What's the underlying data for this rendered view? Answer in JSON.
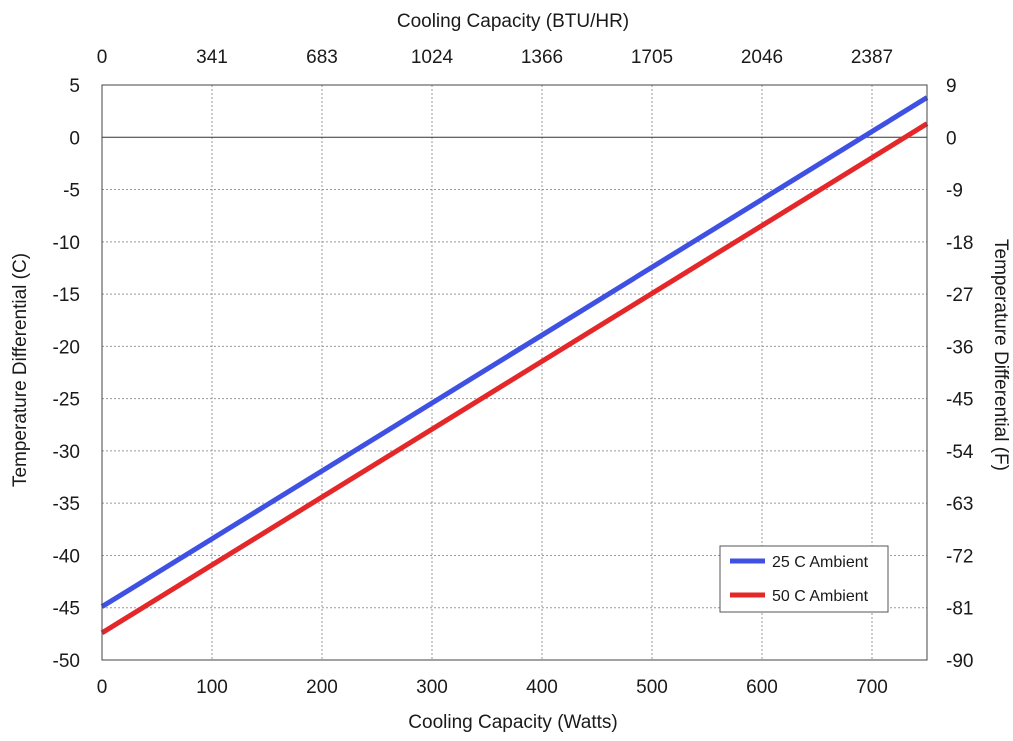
{
  "chart_data": {
    "type": "line",
    "title": "",
    "xlabel": "Cooling Capacity (Watts)",
    "ylabel": "Temperature Differential (C)",
    "x2label": "Cooling Capacity (BTU/HR)",
    "y2label": "Temperature Differential (F)",
    "xlim": [
      0,
      750
    ],
    "ylim": [
      -50,
      5
    ],
    "x_ticks": [
      0,
      100,
      200,
      300,
      400,
      500,
      600,
      700
    ],
    "y_ticks": [
      5,
      0,
      -5,
      -10,
      -15,
      -20,
      -25,
      -30,
      -35,
      -40,
      -45,
      -50
    ],
    "x2_ticks": [
      {
        "at": 0,
        "label": "0"
      },
      {
        "at": 100,
        "label": "341"
      },
      {
        "at": 200,
        "label": "683"
      },
      {
        "at": 300,
        "label": "1024"
      },
      {
        "at": 400,
        "label": "1366"
      },
      {
        "at": 500,
        "label": "1705"
      },
      {
        "at": 600,
        "label": "2046"
      },
      {
        "at": 700,
        "label": "2387"
      }
    ],
    "y2_ticks": [
      {
        "at": 5,
        "label": "9"
      },
      {
        "at": 0,
        "label": "0"
      },
      {
        "at": -5,
        "label": "-9"
      },
      {
        "at": -10,
        "label": "-18"
      },
      {
        "at": -15,
        "label": "-27"
      },
      {
        "at": -20,
        "label": "-36"
      },
      {
        "at": -25,
        "label": "-45"
      },
      {
        "at": -30,
        "label": "-54"
      },
      {
        "at": -35,
        "label": "-63"
      },
      {
        "at": -40,
        "label": "-72"
      },
      {
        "at": -45,
        "label": "-81"
      },
      {
        "at": -50,
        "label": "-90"
      }
    ],
    "grid": true,
    "legend_position": "bottom-right",
    "series": [
      {
        "name": "25 C Ambient",
        "color": "#3f51e3",
        "x": [
          0,
          750
        ],
        "y": [
          -44.9,
          3.8
        ]
      },
      {
        "name": "50 C Ambient",
        "color": "#e4282a",
        "x": [
          0,
          750
        ],
        "y": [
          -47.4,
          1.3
        ]
      }
    ]
  }
}
